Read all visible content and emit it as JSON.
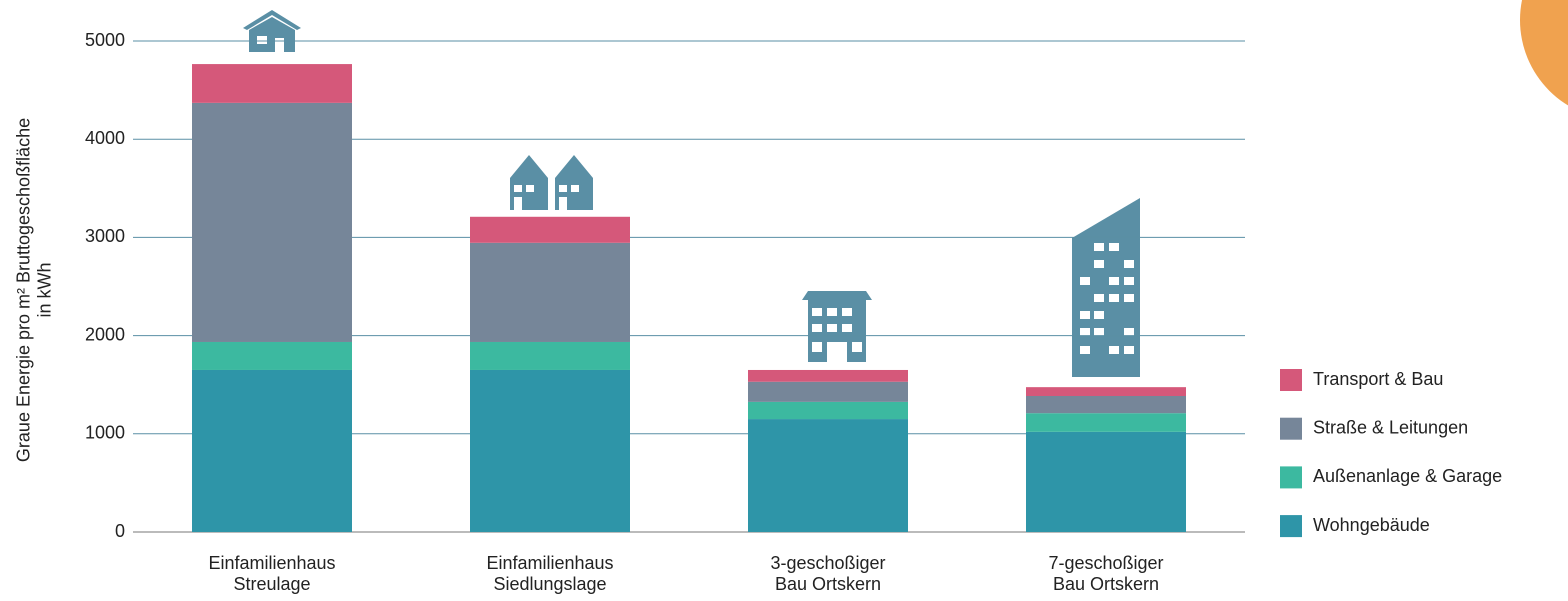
{
  "chart_data": {
    "type": "stacked_bar",
    "ylabel": "Graue Energie pro m² Bruttogeschoßfläche\nin kWh",
    "categories": [
      "Einfamilienhaus\nStreulage",
      "Einfamilienhaus\nSiedlungslage",
      "3-geschoßiger\nBau Ortskern",
      "7-geschoßiger\nBau Ortskern"
    ],
    "series": [
      {
        "name": "Wohngebäude",
        "color": "#2e95a8",
        "values": [
          1650,
          1650,
          1150,
          1020
        ]
      },
      {
        "name": "Außenanlage & Garage",
        "color": "#3cb9a0",
        "values": [
          285,
          285,
          175,
          190
        ]
      },
      {
        "name": "Straße & Leitungen",
        "color": "#768699",
        "values": [
          2435,
          1010,
          205,
          175
        ]
      },
      {
        "name": "Transport & Bau",
        "color": "#d5587a",
        "values": [
          395,
          265,
          120,
          90
        ]
      }
    ],
    "ylim": [
      0,
      5000
    ],
    "yticks": [
      0,
      1000,
      2000,
      3000,
      4000,
      5000
    ],
    "grid": true,
    "legend": "right"
  }
}
